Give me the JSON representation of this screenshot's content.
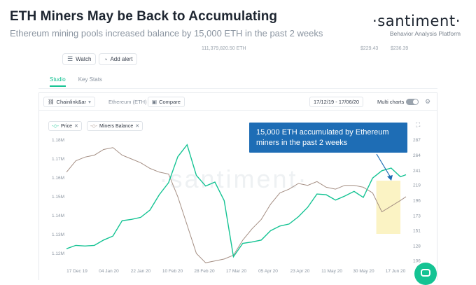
{
  "article": {
    "title": "ETH Miners May be Back to Accumulating",
    "subtitle": "Ethereum mining pools increased balance by 15,000 ETH in the past 2 weeks",
    "brand_name": "·santiment·",
    "brand_tagline": "Behavior Analysis Platform",
    "cut_off_values": [
      "111,379,820.50 ETH",
      "$229.43",
      "$236.39"
    ]
  },
  "actions": {
    "watch": "Watch",
    "add_alert": "Add alert"
  },
  "tabs": [
    {
      "label": "Studio",
      "active": true
    },
    {
      "label": "Key Stats",
      "active": false
    }
  ],
  "toolbar": {
    "asset_selector": "Chainlink&ar",
    "project": "Ethereum (ETH)",
    "compare": "Compare",
    "date_range": "17/12/19 - 17/06/20",
    "multi_charts": "Multi charts",
    "multi_charts_enabled": false
  },
  "metrics": [
    {
      "label": "Price",
      "color": "#14c393"
    },
    {
      "label": "Miners Balance",
      "color": "#a58f84"
    }
  ],
  "watermark": "·santiment·",
  "annotation": {
    "text_line1": "15,000 ETH accumulated by Ethereum",
    "text_line2": "miners  in the past 2 weeks",
    "color": "#1e6db5",
    "highlight_color": "#fbf3c4"
  },
  "chart_data": {
    "type": "line",
    "x_tick_labels": [
      "17 Dec 19",
      "04 Jan 20",
      "22 Jan 20",
      "10 Feb 20",
      "28 Feb 20",
      "17 Mar 20",
      "05 Apr 20",
      "23 Apr 20",
      "11 May 20",
      "30 May 20",
      "17 Jun 20"
    ],
    "left_axis": {
      "label": "Miners Balance",
      "ticks": [
        "1.12M",
        "1.13M",
        "1.14M",
        "1.15M",
        "1.16M",
        "1.17M",
        "1.18M"
      ],
      "ylim": [
        1114000,
        1180000
      ]
    },
    "right_axis": {
      "label": "Price",
      "ticks": [
        "106",
        "128",
        "151",
        "173",
        "196",
        "219",
        "241",
        "264",
        "287"
      ],
      "ylim": [
        100,
        287
      ]
    },
    "series": [
      {
        "name": "Miners Balance",
        "axis": "left",
        "color": "#a58f84",
        "x": [
          "2019-12-17",
          "2019-12-22",
          "2019-12-27",
          "2020-01-01",
          "2020-01-06",
          "2020-01-11",
          "2020-01-16",
          "2020-01-21",
          "2020-01-26",
          "2020-01-31",
          "2020-02-05",
          "2020-02-10",
          "2020-02-15",
          "2020-02-20",
          "2020-02-25",
          "2020-03-01",
          "2020-03-06",
          "2020-03-11",
          "2020-03-16",
          "2020-03-21",
          "2020-03-26",
          "2020-03-31",
          "2020-04-05",
          "2020-04-10",
          "2020-04-15",
          "2020-04-20",
          "2020-04-25",
          "2020-04-30",
          "2020-05-05",
          "2020-05-10",
          "2020-05-15",
          "2020-05-20",
          "2020-05-25",
          "2020-05-30",
          "2020-06-04",
          "2020-06-09",
          "2020-06-14",
          "2020-06-17"
        ],
        "values": [
          1163000,
          1169000,
          1171000,
          1172000,
          1175000,
          1176000,
          1172000,
          1170000,
          1168000,
          1165000,
          1163000,
          1162000,
          1150000,
          1135000,
          1120000,
          1115000,
          1116000,
          1117000,
          1119000,
          1127000,
          1133000,
          1138000,
          1146000,
          1152000,
          1154000,
          1157000,
          1156000,
          1158000,
          1155000,
          1154000,
          1156000,
          1156000,
          1155000,
          1152000,
          1142000,
          1145000,
          1148000,
          1150000
        ]
      },
      {
        "name": "Price",
        "axis": "right",
        "color": "#14c393",
        "x": [
          "2019-12-17",
          "2019-12-22",
          "2019-12-27",
          "2020-01-01",
          "2020-01-06",
          "2020-01-11",
          "2020-01-16",
          "2020-01-21",
          "2020-01-26",
          "2020-01-31",
          "2020-02-05",
          "2020-02-10",
          "2020-02-15",
          "2020-02-20",
          "2020-02-25",
          "2020-03-01",
          "2020-03-06",
          "2020-03-11",
          "2020-03-16",
          "2020-03-21",
          "2020-03-26",
          "2020-03-31",
          "2020-04-05",
          "2020-04-10",
          "2020-04-15",
          "2020-04-20",
          "2020-04-25",
          "2020-04-30",
          "2020-05-05",
          "2020-05-10",
          "2020-05-15",
          "2020-05-20",
          "2020-05-25",
          "2020-05-30",
          "2020-06-04",
          "2020-06-09",
          "2020-06-14",
          "2020-06-17"
        ],
        "values": [
          124,
          129,
          128,
          129,
          137,
          143,
          166,
          168,
          171,
          182,
          205,
          223,
          262,
          280,
          234,
          218,
          224,
          196,
          112,
          132,
          134,
          137,
          151,
          158,
          161,
          172,
          186,
          206,
          205,
          197,
          203,
          210,
          201,
          230,
          241,
          245,
          232,
          235
        ]
      }
    ],
    "highlight_range": [
      "2020-06-01",
      "2020-06-14"
    ],
    "grid": false
  }
}
